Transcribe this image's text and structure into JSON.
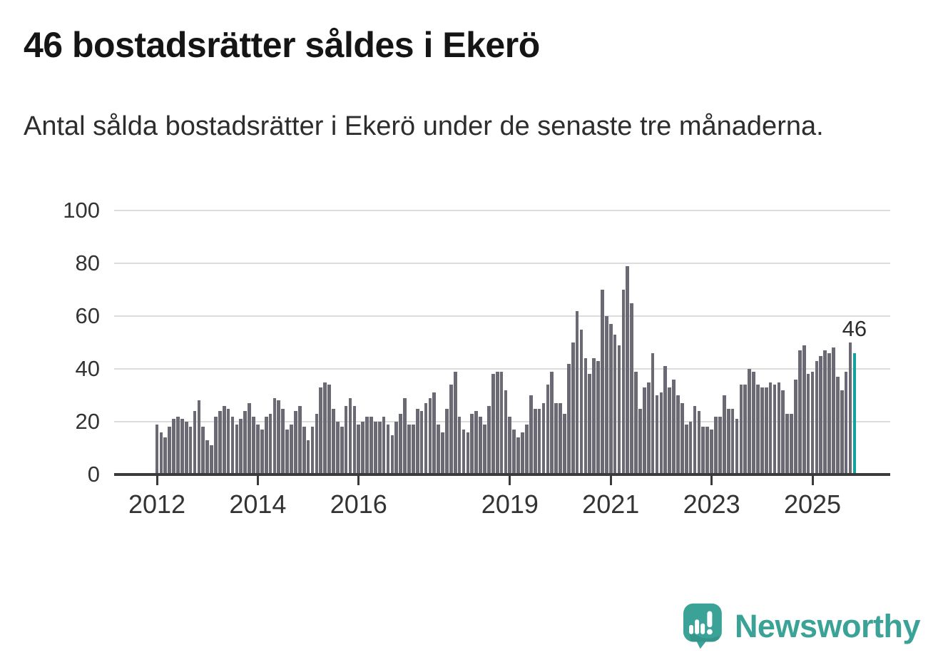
{
  "header": {
    "title": "46 bostadsrätter såldes i Ekerö",
    "subtitle": "Antal sålda bostadsrätter i Ekerö under de senaste tre månaderna."
  },
  "chart_data": {
    "type": "bar",
    "title": "46 bostadsrätter såldes i Ekerö",
    "subtitle": "Antal sålda bostadsrätter i Ekerö under de senaste tre månaderna.",
    "x_start_month": "2012-01",
    "x_end_month": "2025-11",
    "values": [
      19,
      16,
      14,
      18,
      21,
      22,
      21,
      20,
      18,
      24,
      28,
      18,
      13,
      11,
      22,
      24,
      26,
      25,
      22,
      19,
      21,
      24,
      27,
      22,
      19,
      17,
      22,
      23,
      29,
      28,
      25,
      17,
      19,
      24,
      26,
      18,
      13,
      18,
      23,
      33,
      35,
      34,
      25,
      20,
      18,
      26,
      29,
      26,
      19,
      20,
      22,
      22,
      20,
      20,
      22,
      19,
      15,
      20,
      23,
      29,
      19,
      19,
      25,
      24,
      27,
      29,
      31,
      19,
      16,
      25,
      34,
      39,
      22,
      17,
      16,
      23,
      24,
      22,
      19,
      26,
      38,
      39,
      39,
      32,
      22,
      17,
      14,
      16,
      19,
      30,
      25,
      25,
      27,
      34,
      39,
      27,
      27,
      23,
      42,
      50,
      62,
      55,
      44,
      38,
      44,
      43,
      70,
      60,
      57,
      53,
      49,
      70,
      79,
      65,
      39,
      25,
      33,
      35,
      46,
      30,
      31,
      41,
      33,
      36,
      30,
      27,
      19,
      20,
      26,
      24,
      18,
      18,
      17,
      22,
      22,
      30,
      25,
      25,
      21,
      34,
      34,
      40,
      39,
      34,
      33,
      33,
      35,
      34,
      35,
      32,
      23,
      23,
      36,
      47,
      49,
      38,
      39,
      43,
      45,
      47,
      46,
      48,
      37,
      32,
      39,
      50,
      46
    ],
    "highlight": {
      "index": 166,
      "value": 46,
      "label": "46"
    },
    "ylim": [
      0,
      100
    ],
    "yticks": [
      0,
      20,
      40,
      60,
      80,
      100
    ],
    "xticks": [
      {
        "label": "2012",
        "month": 0
      },
      {
        "label": "2014",
        "month": 24
      },
      {
        "label": "2016",
        "month": 48
      },
      {
        "label": "2019",
        "month": 84
      },
      {
        "label": "2021",
        "month": 108
      },
      {
        "label": "2023",
        "month": 132
      },
      {
        "label": "2025",
        "month": 156
      }
    ],
    "grid": true,
    "legend": "none",
    "bar_color": "#6b6973",
    "highlight_color": "#12a39e"
  },
  "colors": {
    "brand_teal": "#3aa296",
    "axis": "#3b3b3b",
    "grid": "#dcdcdc",
    "text_dark": "#151515",
    "text_medium": "#333333"
  },
  "footer": {
    "brand": "Newsworthy"
  }
}
